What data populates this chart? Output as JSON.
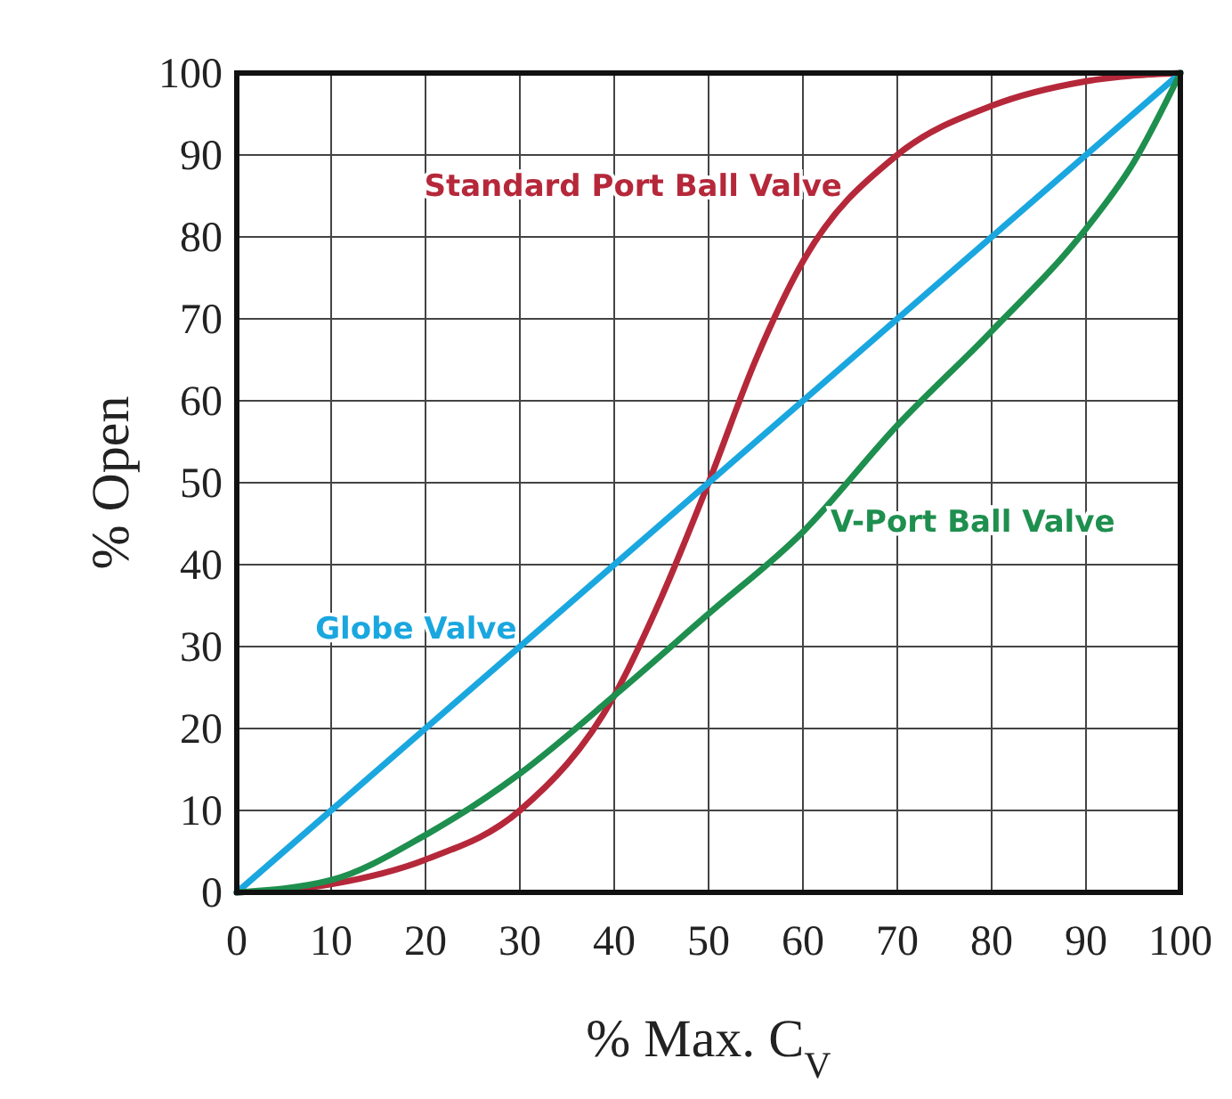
{
  "chart_data": {
    "type": "line",
    "xlabel": "% Max. C$_{V}$",
    "ylabel": "% Open",
    "xlim": [
      0,
      100
    ],
    "ylim": [
      0,
      100
    ],
    "xticks": [
      0,
      10,
      20,
      30,
      40,
      50,
      60,
      70,
      80,
      90,
      100
    ],
    "yticks": [
      0,
      10,
      20,
      30,
      40,
      50,
      60,
      70,
      80,
      90,
      100
    ],
    "grid": true,
    "legend": false,
    "marker": "none",
    "series": [
      {
        "name": "Standard Port Ball Valve",
        "color": "#b5283a",
        "x": [
          0,
          10,
          20,
          30,
          40,
          45,
          50,
          55,
          60,
          70,
          80,
          90,
          100
        ],
        "values": [
          0,
          1,
          4,
          10,
          24,
          36,
          50,
          65,
          77,
          90,
          96,
          99,
          100
        ]
      },
      {
        "name": "Globe Valve",
        "color": "#1aa7df",
        "x": [
          0,
          100
        ],
        "values": [
          0,
          100
        ]
      },
      {
        "name": "V-Port Ball Valve",
        "color": "#1e8f4e",
        "x": [
          0,
          10,
          20,
          30,
          40,
          50,
          60,
          70,
          80,
          90,
          95,
          100
        ],
        "values": [
          0,
          1.5,
          7,
          14.5,
          24,
          34,
          44,
          57,
          68.5,
          81,
          89,
          100
        ]
      }
    ]
  }
}
